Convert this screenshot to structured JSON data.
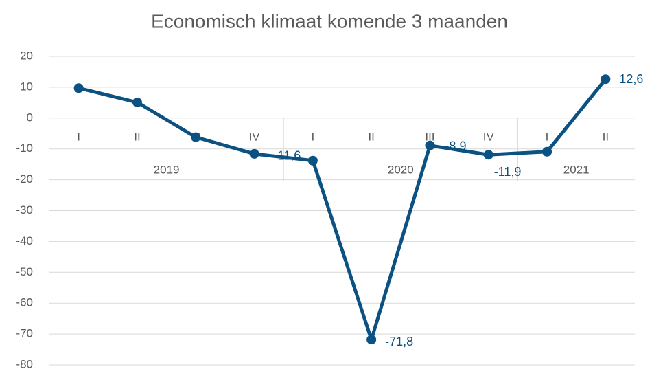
{
  "chart_data": {
    "type": "line",
    "title": "Economisch klimaat komende 3 maanden",
    "groups": [
      {
        "name": "2019",
        "categories": [
          "I",
          "II",
          "III",
          "IV"
        ]
      },
      {
        "name": "2020",
        "categories": [
          "I",
          "II",
          "III",
          "IV"
        ]
      },
      {
        "name": "2021",
        "categories": [
          "I",
          "II"
        ]
      }
    ],
    "values": [
      9.7,
      5.1,
      -6.2,
      -11.6,
      -13.8,
      -71.8,
      -8.9,
      -11.9,
      -10.9,
      12.6
    ],
    "value_labels": [
      null,
      null,
      null,
      "-11,6",
      null,
      "-71,8",
      "-8,9",
      "-11,9",
      null,
      "12,6"
    ],
    "color": "#0b5283",
    "ylim": [
      -80,
      20
    ],
    "yticks": [
      -80,
      -70,
      -60,
      -50,
      -40,
      -30,
      -20,
      -10,
      0,
      10,
      20
    ],
    "grid": true
  }
}
